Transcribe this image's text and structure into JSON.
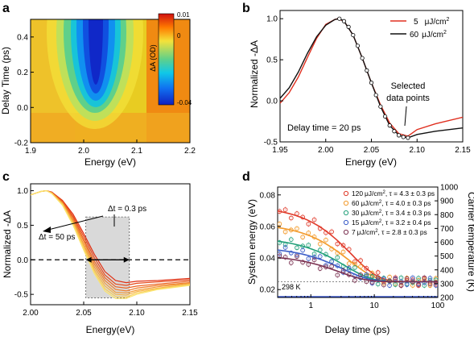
{
  "chart_data": [
    {
      "panel": "a",
      "type": "heatmap",
      "xlabel": "Energy (eV)",
      "ylabel": "Delay Time (ps)",
      "xlim": [
        1.9,
        2.2
      ],
      "ylim": [
        -0.2,
        0.5
      ],
      "xticks": [
        "1.9",
        "2.0",
        "2.1",
        "2.2"
      ],
      "yticks": [
        "-0.2",
        "0.0",
        "0.2",
        "0.4"
      ],
      "colorbar": {
        "label": "ΔA (OD)",
        "ticks": [
          "0.01",
          "0",
          "-0.04"
        ],
        "range": [
          -0.04,
          0.01
        ]
      },
      "grid": false
    },
    {
      "panel": "b",
      "type": "line",
      "xlabel": "Energy (eV)",
      "ylabel": "Normalized -ΔA",
      "xlim": [
        1.95,
        2.15
      ],
      "ylim": [
        -0.5,
        1.1
      ],
      "xticks": [
        "1.95",
        "2.00",
        "2.05",
        "2.10",
        "2.15"
      ],
      "yticks": [
        "-0.5",
        "0.0",
        "0.5",
        "1.0"
      ],
      "legend_position": "top-right",
      "series": [
        {
          "name": "5",
          "unit": "μJ/cm",
          "sup": "2",
          "color": "#e03020",
          "x": [
            1.95,
            1.96,
            1.97,
            1.98,
            1.99,
            2.0,
            2.01,
            2.013,
            2.02,
            2.03,
            2.04,
            2.05,
            2.06,
            2.07,
            2.08,
            2.09,
            2.1,
            2.12,
            2.15
          ],
          "y": [
            -0.03,
            0.1,
            0.29,
            0.53,
            0.76,
            0.93,
            0.99,
            1.0,
            0.97,
            0.8,
            0.52,
            0.22,
            -0.05,
            -0.27,
            -0.4,
            -0.43,
            -0.35,
            -0.28,
            -0.2
          ]
        },
        {
          "name": "60",
          "unit": "μJ/cm",
          "sup": "2",
          "color": "#111111",
          "x": [
            1.95,
            1.96,
            1.97,
            1.98,
            1.99,
            2.0,
            2.01,
            2.015,
            2.02,
            2.03,
            2.04,
            2.05,
            2.06,
            2.07,
            2.08,
            2.09,
            2.1,
            2.12,
            2.15
          ],
          "y": [
            0.03,
            0.16,
            0.35,
            0.58,
            0.78,
            0.92,
            0.99,
            1.0,
            0.97,
            0.8,
            0.52,
            0.22,
            -0.07,
            -0.3,
            -0.42,
            -0.45,
            -0.41,
            -0.37,
            -0.33
          ]
        }
      ],
      "markers": {
        "x": [
          2.015,
          2.02,
          2.025,
          2.03,
          2.035,
          2.04,
          2.045,
          2.05,
          2.055,
          2.06,
          2.065,
          2.07,
          2.075,
          2.08,
          2.085,
          2.09
        ],
        "y": [
          1.0,
          0.97,
          0.9,
          0.8,
          0.67,
          0.52,
          0.37,
          0.22,
          0.07,
          -0.07,
          -0.19,
          -0.3,
          -0.37,
          -0.42,
          -0.44,
          -0.45
        ]
      },
      "annotations": [
        "Selected",
        "data points",
        "Delay time = 20 ps"
      ]
    },
    {
      "panel": "c",
      "type": "line",
      "xlabel": "Energy(eV)",
      "ylabel": "Normalized -ΔA",
      "xlim": [
        2.0,
        2.15
      ],
      "ylim": [
        -0.65,
        1.1
      ],
      "xticks": [
        "2.00",
        "2.05",
        "2.10",
        "2.15"
      ],
      "yticks": [
        "-0.5",
        "0.0",
        "0.5",
        "1.0"
      ],
      "series": [
        {
          "color": "#e02f12",
          "x": [
            2.0,
            2.01,
            2.015,
            2.02,
            2.03,
            2.04,
            2.05,
            2.06,
            2.07,
            2.08,
            2.09,
            2.1,
            2.12,
            2.15
          ],
          "y": [
            0.94,
            0.99,
            1.0,
            0.98,
            0.86,
            0.66,
            0.38,
            0.08,
            -0.17,
            -0.3,
            -0.33,
            -0.31,
            -0.3,
            -0.27
          ]
        },
        {
          "color": "#e64a1a",
          "x": [
            2.0,
            2.01,
            2.015,
            2.02,
            2.03,
            2.04,
            2.05,
            2.06,
            2.07,
            2.08,
            2.09,
            2.1,
            2.12,
            2.15
          ],
          "y": [
            0.94,
            0.99,
            1.0,
            0.98,
            0.85,
            0.63,
            0.34,
            0.03,
            -0.22,
            -0.35,
            -0.37,
            -0.34,
            -0.32,
            -0.29
          ]
        },
        {
          "color": "#eb6423",
          "x": [
            2.0,
            2.01,
            2.015,
            2.02,
            2.03,
            2.04,
            2.05,
            2.06,
            2.07,
            2.08,
            2.09,
            2.1,
            2.12,
            2.15
          ],
          "y": [
            0.94,
            0.99,
            1.0,
            0.97,
            0.84,
            0.61,
            0.3,
            -0.02,
            -0.26,
            -0.39,
            -0.41,
            -0.38,
            -0.35,
            -0.31
          ]
        },
        {
          "color": "#f07f2c",
          "x": [
            2.0,
            2.01,
            2.015,
            2.02,
            2.03,
            2.04,
            2.05,
            2.06,
            2.07,
            2.08,
            2.09,
            2.1,
            2.12,
            2.15
          ],
          "y": [
            0.94,
            0.99,
            1.0,
            0.97,
            0.83,
            0.58,
            0.27,
            -0.06,
            -0.3,
            -0.43,
            -0.45,
            -0.41,
            -0.37,
            -0.33
          ]
        },
        {
          "color": "#f39a38",
          "x": [
            2.0,
            2.01,
            2.015,
            2.02,
            2.03,
            2.04,
            2.05,
            2.06,
            2.07,
            2.08,
            2.09,
            2.1,
            2.12,
            2.15
          ],
          "y": [
            0.94,
            0.99,
            1.0,
            0.97,
            0.82,
            0.56,
            0.23,
            -0.1,
            -0.34,
            -0.47,
            -0.48,
            -0.44,
            -0.39,
            -0.34
          ]
        },
        {
          "color": "#f6b548",
          "x": [
            2.0,
            2.01,
            2.015,
            2.02,
            2.03,
            2.04,
            2.05,
            2.06,
            2.07,
            2.08,
            2.09,
            2.1,
            2.12,
            2.15
          ],
          "y": [
            0.94,
            0.99,
            1.0,
            0.96,
            0.81,
            0.54,
            0.2,
            -0.14,
            -0.38,
            -0.5,
            -0.51,
            -0.46,
            -0.41,
            -0.35
          ]
        },
        {
          "color": "#f9cf5a",
          "x": [
            2.0,
            2.01,
            2.015,
            2.02,
            2.03,
            2.04,
            2.05,
            2.06,
            2.07,
            2.08,
            2.09,
            2.1,
            2.12,
            2.15
          ],
          "y": [
            0.94,
            0.99,
            1.0,
            0.96,
            0.8,
            0.52,
            0.17,
            -0.17,
            -0.42,
            -0.53,
            -0.54,
            -0.48,
            -0.42,
            -0.36
          ]
        },
        {
          "color": "#fbe46c",
          "x": [
            2.0,
            2.01,
            2.015,
            2.02,
            2.03,
            2.04,
            2.05,
            2.06,
            2.07,
            2.08,
            2.09,
            2.1,
            2.12,
            2.15
          ],
          "y": [
            0.94,
            0.99,
            1.0,
            0.96,
            0.79,
            0.5,
            0.14,
            -0.2,
            -0.45,
            -0.56,
            -0.56,
            -0.5,
            -0.43,
            -0.37
          ]
        }
      ],
      "shaded_region": {
        "x": [
          2.052,
          2.093
        ],
        "y": [
          -0.55,
          0.62
        ]
      },
      "zero_line": 0.0,
      "annotations": [
        "Δt = 0.3 ps",
        "Δt = 50 ps"
      ]
    },
    {
      "panel": "d",
      "type": "scatter",
      "xlabel": "Delay time (ps)",
      "ylabel": "System energy (eV)",
      "y2label": "Carrier temperature (K)",
      "xscale": "log",
      "xlim": [
        0.3,
        100
      ],
      "ylim": [
        0.015,
        0.085
      ],
      "y2lim": [
        200,
        1000
      ],
      "xticks": [
        "1",
        "10",
        "100"
      ],
      "yticks": [
        "0.02",
        "0.04",
        "0.06",
        "0.08"
      ],
      "y2ticks": [
        "200",
        "300",
        "400",
        "500",
        "600",
        "700",
        "800",
        "900",
        "1000"
      ],
      "baseline": {
        "y": 0.025,
        "label": "298 K"
      },
      "legend_position": "top-right",
      "series": [
        {
          "name": "120",
          "unit": "μJ/cm",
          "sup": "2",
          "tau": ", τ = 4.3 ± 0.3 ps",
          "color": "#e03a2a",
          "E0": 0.073,
          "tau_ps": 4.3
        },
        {
          "name": "60",
          "unit": "μJ/cm",
          "sup": "2",
          "tau": ", τ = 4.0 ± 0.3 ps",
          "color": "#f39a2a",
          "E0": 0.062,
          "tau_ps": 4.0
        },
        {
          "name": "30",
          "unit": "μJ/cm",
          "sup": "2",
          "tau": ", τ = 3.4 ± 0.3 ps",
          "color": "#22a07a",
          "E0": 0.053,
          "tau_ps": 3.4
        },
        {
          "name": "15",
          "unit": "μJ/cm",
          "sup": "2",
          "tau": ", τ = 3.2 ± 0.4 ps",
          "color": "#3a5cc8",
          "E0": 0.047,
          "tau_ps": 3.2
        },
        {
          "name": "7",
          "unit": "μJ/cm",
          "sup": "2",
          "tau": ", τ = 2.8 ± 0.3 ps",
          "color": "#7a3050",
          "E0": 0.042,
          "tau_ps": 2.8
        }
      ],
      "fit_floor": 0.025
    }
  ],
  "panel_labels": [
    "a",
    "b",
    "c",
    "d"
  ]
}
